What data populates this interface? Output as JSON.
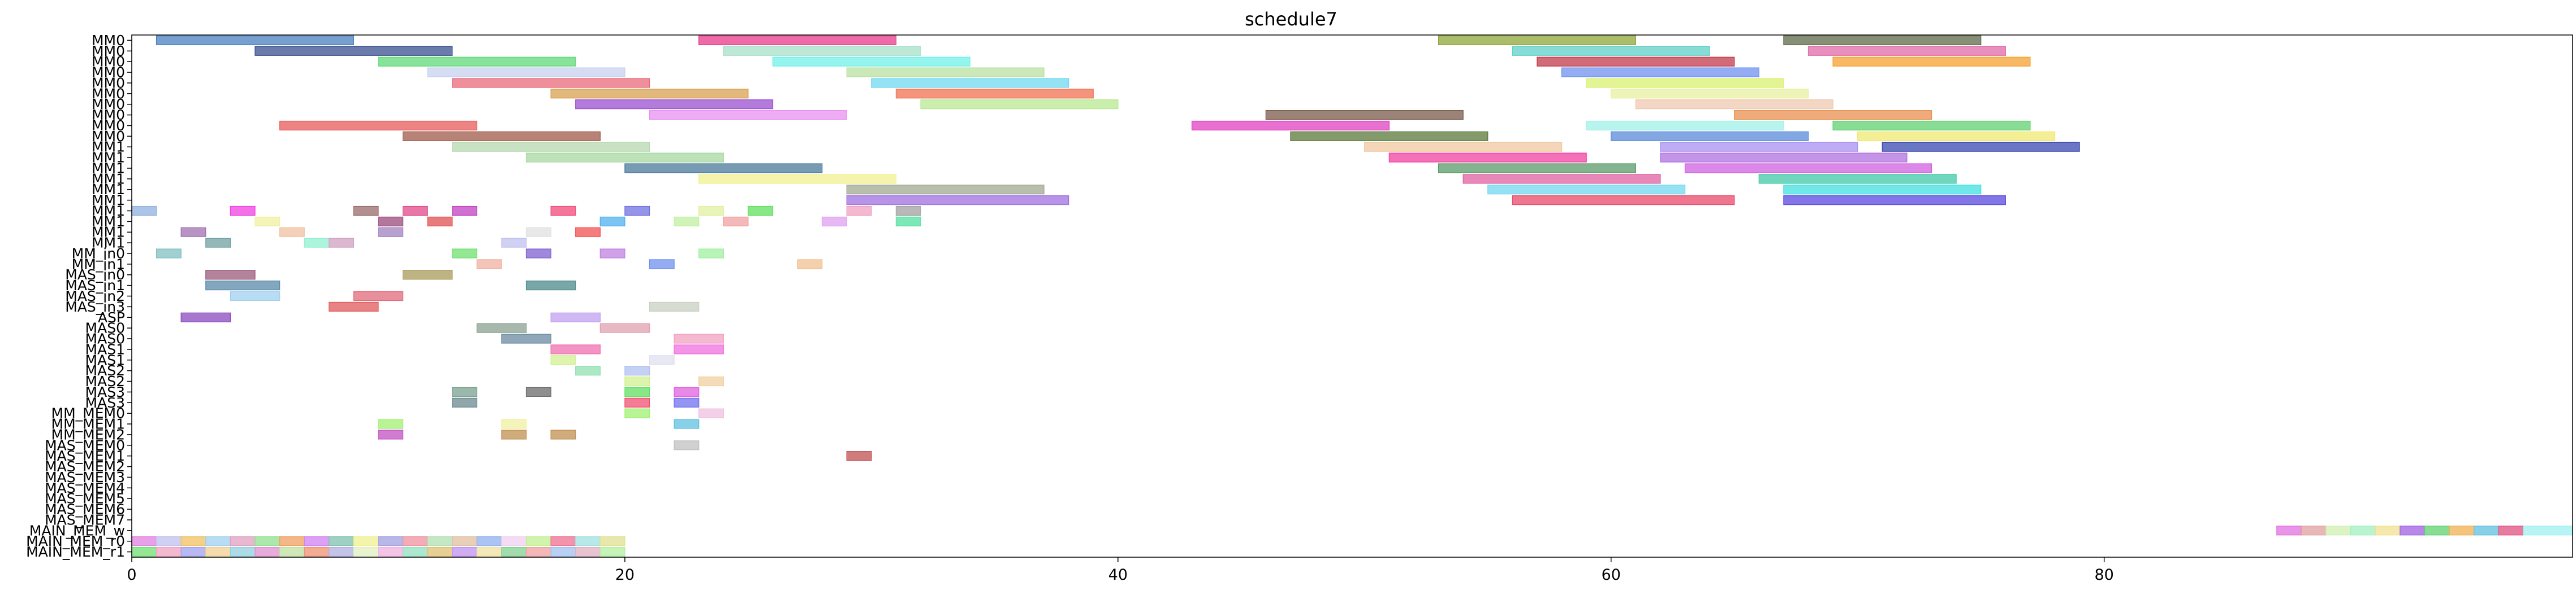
{
  "chart_data": {
    "type": "gantt",
    "title": "schedule7",
    "xlabel": "",
    "ylabel": "",
    "xlim": [
      0,
      99
    ],
    "xticks": [
      0,
      20,
      40,
      60,
      80
    ],
    "rows": [
      "MM0",
      "MM0",
      "MM0",
      "MM0",
      "MM0",
      "MM0",
      "MM0",
      "MM0",
      "MM0",
      "MM0",
      "MM1",
      "MM1",
      "MM1",
      "MM1",
      "MM1",
      "MM1",
      "MM1",
      "MM1",
      "MM1",
      "MM1",
      "MM_in0",
      "MM_in1",
      "MAS_in0",
      "MAS_in1",
      "MAS_in2",
      "MAS_in3",
      "ASP",
      "MAS0",
      "MAS0",
      "MAS1",
      "MAS1",
      "MAS2",
      "MAS2",
      "MAS3",
      "MAS3",
      "MM_MEM0",
      "MM_MEM1",
      "MM_MEM2",
      "MAS_MEM0",
      "MAS_MEM1",
      "MAS_MEM2",
      "MAS_MEM3",
      "MAS_MEM4",
      "MAS_MEM5",
      "MAS_MEM6",
      "MAS_MEM7",
      "MAIN_MEM_w",
      "MAIN_MEM_r0",
      "MAIN_MEM_r1"
    ],
    "tasks": [
      {
        "row": 0,
        "start": 1,
        "end": 9,
        "color": "#4a7fbf"
      },
      {
        "row": 0,
        "start": 23,
        "end": 31,
        "color": "#e83a8a"
      },
      {
        "row": 0,
        "start": 53,
        "end": 61,
        "color": "#8fa63a"
      },
      {
        "row": 0,
        "start": 67,
        "end": 75,
        "color": "#5f6b4a"
      },
      {
        "row": 1,
        "start": 5,
        "end": 13,
        "color": "#3a4f8f"
      },
      {
        "row": 1,
        "start": 24,
        "end": 32,
        "color": "#a8e0c8"
      },
      {
        "row": 1,
        "start": 56,
        "end": 64,
        "color": "#5fd0c8"
      },
      {
        "row": 1,
        "start": 68,
        "end": 76,
        "color": "#e06aa8"
      },
      {
        "row": 2,
        "start": 10,
        "end": 18,
        "color": "#5fd878"
      },
      {
        "row": 2,
        "start": 26,
        "end": 34,
        "color": "#70f0e8"
      },
      {
        "row": 2,
        "start": 57,
        "end": 65,
        "color": "#c03a4a"
      },
      {
        "row": 2,
        "start": 69,
        "end": 77,
        "color": "#f5a030"
      },
      {
        "row": 3,
        "start": 12,
        "end": 20,
        "color": "#c8d0f0"
      },
      {
        "row": 3,
        "start": 29,
        "end": 37,
        "color": "#b8e0a0"
      },
      {
        "row": 3,
        "start": 58,
        "end": 66,
        "color": "#7090f0"
      },
      {
        "row": 4,
        "start": 13,
        "end": 21,
        "color": "#e86a7a"
      },
      {
        "row": 4,
        "start": 30,
        "end": 38,
        "color": "#70d8f0"
      },
      {
        "row": 4,
        "start": 59,
        "end": 67,
        "color": "#d8f070"
      },
      {
        "row": 5,
        "start": 17,
        "end": 25,
        "color": "#d8a050"
      },
      {
        "row": 5,
        "start": 31,
        "end": 39,
        "color": "#f07050"
      },
      {
        "row": 5,
        "start": 60,
        "end": 68,
        "color": "#e8f0a0"
      },
      {
        "row": 6,
        "start": 18,
        "end": 26,
        "color": "#9a50d0"
      },
      {
        "row": 6,
        "start": 32,
        "end": 40,
        "color": "#b8e890"
      },
      {
        "row": 6,
        "start": 61,
        "end": 69,
        "color": "#f0c8b0"
      },
      {
        "row": 7,
        "start": 21,
        "end": 29,
        "color": "#e890f0"
      },
      {
        "row": 7,
        "start": 46,
        "end": 54,
        "color": "#7a5a4a"
      },
      {
        "row": 7,
        "start": 65,
        "end": 73,
        "color": "#e89050"
      },
      {
        "row": 8,
        "start": 6,
        "end": 14,
        "color": "#e85a5a"
      },
      {
        "row": 8,
        "start": 43,
        "end": 51,
        "color": "#e040c0"
      },
      {
        "row": 8,
        "start": 59,
        "end": 67,
        "color": "#a0f0e8"
      },
      {
        "row": 8,
        "start": 69,
        "end": 77,
        "color": "#60d070"
      },
      {
        "row": 9,
        "start": 11,
        "end": 19,
        "color": "#a05a4a"
      },
      {
        "row": 9,
        "start": 47,
        "end": 55,
        "color": "#5a7a3a"
      },
      {
        "row": 9,
        "start": 60,
        "end": 68,
        "color": "#5a8ad8"
      },
      {
        "row": 9,
        "start": 70,
        "end": 78,
        "color": "#f0e870"
      },
      {
        "row": 10,
        "start": 13,
        "end": 21,
        "color": "#b8d8b0"
      },
      {
        "row": 10,
        "start": 50,
        "end": 58,
        "color": "#f0c8a0"
      },
      {
        "row": 10,
        "start": 62,
        "end": 70,
        "color": "#a890f0"
      },
      {
        "row": 10,
        "start": 71,
        "end": 79,
        "color": "#3a4ab0"
      },
      {
        "row": 11,
        "start": 16,
        "end": 24,
        "color": "#a8d8a0"
      },
      {
        "row": 11,
        "start": 51,
        "end": 59,
        "color": "#f040a0"
      },
      {
        "row": 11,
        "start": 62,
        "end": 72,
        "color": "#b070e0"
      },
      {
        "row": 12,
        "start": 20,
        "end": 28,
        "color": "#4a7a9a"
      },
      {
        "row": 12,
        "start": 53,
        "end": 61,
        "color": "#5a9a6a"
      },
      {
        "row": 12,
        "start": 63,
        "end": 73,
        "color": "#d060e0"
      },
      {
        "row": 13,
        "start": 23,
        "end": 31,
        "color": "#f0f090"
      },
      {
        "row": 13,
        "start": 54,
        "end": 62,
        "color": "#e060a0"
      },
      {
        "row": 13,
        "start": 66,
        "end": 74,
        "color": "#40c8a8"
      },
      {
        "row": 14,
        "start": 29,
        "end": 37,
        "color": "#a0a890"
      },
      {
        "row": 14,
        "start": 55,
        "end": 63,
        "color": "#70d8f0"
      },
      {
        "row": 14,
        "start": 67,
        "end": 75,
        "color": "#40e0e0"
      },
      {
        "row": 15,
        "start": 29,
        "end": 38,
        "color": "#a070e0"
      },
      {
        "row": 15,
        "start": 56,
        "end": 65,
        "color": "#e84a6a"
      },
      {
        "row": 15,
        "start": 67,
        "end": 76,
        "color": "#5a4ae0"
      },
      {
        "row": 16,
        "start": 0,
        "end": 1,
        "color": "#90b0e0"
      },
      {
        "row": 16,
        "start": 4,
        "end": 5,
        "color": "#f040e0"
      },
      {
        "row": 16,
        "start": 9,
        "end": 10,
        "color": "#9a6a6a"
      },
      {
        "row": 16,
        "start": 11,
        "end": 12,
        "color": "#e04a8a"
      },
      {
        "row": 16,
        "start": 13,
        "end": 14,
        "color": "#c040c0"
      },
      {
        "row": 16,
        "start": 17,
        "end": 18,
        "color": "#f04a7a"
      },
      {
        "row": 16,
        "start": 20,
        "end": 21,
        "color": "#7070e0"
      },
      {
        "row": 16,
        "start": 23,
        "end": 24,
        "color": "#e0f0a0"
      },
      {
        "row": 16,
        "start": 25,
        "end": 26,
        "color": "#60e060"
      },
      {
        "row": 16,
        "start": 29,
        "end": 30,
        "color": "#f0a0c0"
      },
      {
        "row": 16,
        "start": 31,
        "end": 32,
        "color": "#a0a0a0"
      },
      {
        "row": 17,
        "start": 5,
        "end": 6,
        "color": "#f0f0a0"
      },
      {
        "row": 17,
        "start": 10,
        "end": 11,
        "color": "#9a4a7a"
      },
      {
        "row": 17,
        "start": 12,
        "end": 13,
        "color": "#e05050"
      },
      {
        "row": 17,
        "start": 19,
        "end": 20,
        "color": "#50b0f0"
      },
      {
        "row": 17,
        "start": 22,
        "end": 23,
        "color": "#c0f0a0"
      },
      {
        "row": 17,
        "start": 24,
        "end": 25,
        "color": "#f0a0a0"
      },
      {
        "row": 17,
        "start": 28,
        "end": 29,
        "color": "#e0a0f0"
      },
      {
        "row": 17,
        "start": 31,
        "end": 32,
        "color": "#50e0a0"
      },
      {
        "row": 18,
        "start": 2,
        "end": 3,
        "color": "#a070b0"
      },
      {
        "row": 18,
        "start": 6,
        "end": 7,
        "color": "#f0c0a0"
      },
      {
        "row": 18,
        "start": 10,
        "end": 11,
        "color": "#a080c0"
      },
      {
        "row": 18,
        "start": 16,
        "end": 17,
        "color": "#e0e0e0"
      },
      {
        "row": 18,
        "start": 18,
        "end": 19,
        "color": "#f05050"
      },
      {
        "row": 19,
        "start": 3,
        "end": 4,
        "color": "#70a0a0"
      },
      {
        "row": 19,
        "start": 7,
        "end": 8,
        "color": "#90f0d0"
      },
      {
        "row": 19,
        "start": 8,
        "end": 9,
        "color": "#d0a0c0"
      },
      {
        "row": 19,
        "start": 15,
        "end": 16,
        "color": "#c0c0f0"
      },
      {
        "row": 20,
        "start": 1,
        "end": 2,
        "color": "#80c0c0"
      },
      {
        "row": 20,
        "start": 13,
        "end": 14,
        "color": "#70e070"
      },
      {
        "row": 20,
        "start": 16,
        "end": 17,
        "color": "#8060d0"
      },
      {
        "row": 20,
        "start": 19,
        "end": 20,
        "color": "#c080e0"
      },
      {
        "row": 20,
        "start": 23,
        "end": 24,
        "color": "#a0f0a0"
      },
      {
        "row": 21,
        "start": 14,
        "end": 15,
        "color": "#f0b0a0"
      },
      {
        "row": 21,
        "start": 21,
        "end": 22,
        "color": "#7090f0"
      },
      {
        "row": 21,
        "start": 27,
        "end": 28,
        "color": "#f0c090"
      },
      {
        "row": 22,
        "start": 3,
        "end": 5,
        "color": "#9a5a7a"
      },
      {
        "row": 22,
        "start": 11,
        "end": 13,
        "color": "#a89a5a"
      },
      {
        "row": 23,
        "start": 3,
        "end": 6,
        "color": "#5a8aaa"
      },
      {
        "row": 23,
        "start": 16,
        "end": 18,
        "color": "#4a8a8a"
      },
      {
        "row": 24,
        "start": 4,
        "end": 6,
        "color": "#a0d0f0"
      },
      {
        "row": 24,
        "start": 9,
        "end": 11,
        "color": "#e06a7a"
      },
      {
        "row": 25,
        "start": 8,
        "end": 10,
        "color": "#e05a5a"
      },
      {
        "row": 25,
        "start": 21,
        "end": 23,
        "color": "#c8d0c0"
      },
      {
        "row": 26,
        "start": 2,
        "end": 4,
        "color": "#8a4ac0"
      },
      {
        "row": 26,
        "start": 17,
        "end": 19,
        "color": "#c0a0f0"
      },
      {
        "row": 27,
        "start": 14,
        "end": 16,
        "color": "#8aa090"
      },
      {
        "row": 27,
        "start": 19,
        "end": 21,
        "color": "#e0a0b0"
      },
      {
        "row": 28,
        "start": 15,
        "end": 17,
        "color": "#6a8aa0"
      },
      {
        "row": 28,
        "start": 22,
        "end": 24,
        "color": "#f0a0c0"
      },
      {
        "row": 29,
        "start": 17,
        "end": 19,
        "color": "#f070b0"
      },
      {
        "row": 29,
        "start": 22,
        "end": 24,
        "color": "#f070e0"
      },
      {
        "row": 30,
        "start": 17,
        "end": 18,
        "color": "#d0f090"
      },
      {
        "row": 30,
        "start": 21,
        "end": 22,
        "color": "#e0e0f0"
      },
      {
        "row": 31,
        "start": 18,
        "end": 19,
        "color": "#90e0b0"
      },
      {
        "row": 31,
        "start": 20,
        "end": 21,
        "color": "#b0c0f0"
      },
      {
        "row": 32,
        "start": 20,
        "end": 21,
        "color": "#d0f090"
      },
      {
        "row": 32,
        "start": 23,
        "end": 24,
        "color": "#f0d0a0"
      },
      {
        "row": 33,
        "start": 13,
        "end": 14,
        "color": "#7aa090"
      },
      {
        "row": 33,
        "start": 16,
        "end": 17,
        "color": "#6a6a6a"
      },
      {
        "row": 33,
        "start": 20,
        "end": 21,
        "color": "#60e060"
      },
      {
        "row": 33,
        "start": 22,
        "end": 23,
        "color": "#e060e0"
      },
      {
        "row": 34,
        "start": 13,
        "end": 14,
        "color": "#6a8a90"
      },
      {
        "row": 34,
        "start": 20,
        "end": 21,
        "color": "#f05070"
      },
      {
        "row": 34,
        "start": 22,
        "end": 23,
        "color": "#7070f0"
      },
      {
        "row": 35,
        "start": 20,
        "end": 21,
        "color": "#a0f070"
      },
      {
        "row": 35,
        "start": 23,
        "end": 24,
        "color": "#f0c0e0"
      },
      {
        "row": 36,
        "start": 10,
        "end": 11,
        "color": "#a0f070"
      },
      {
        "row": 36,
        "start": 15,
        "end": 16,
        "color": "#f0f0a0"
      },
      {
        "row": 36,
        "start": 22,
        "end": 23,
        "color": "#60c0e0"
      },
      {
        "row": 37,
        "start": 10,
        "end": 11,
        "color": "#c050c0"
      },
      {
        "row": 37,
        "start": 15,
        "end": 16,
        "color": "#c09050"
      },
      {
        "row": 37,
        "start": 17,
        "end": 18,
        "color": "#c09050"
      },
      {
        "row": 38,
        "start": 22,
        "end": 23,
        "color": "#c0c0c0"
      },
      {
        "row": 39,
        "start": 29,
        "end": 30,
        "color": "#c05050"
      },
      {
        "row": 46,
        "start": 87,
        "end": 88,
        "color": "#e070e0"
      },
      {
        "row": 46,
        "start": 88,
        "end": 89,
        "color": "#e0a0a0"
      },
      {
        "row": 46,
        "start": 89,
        "end": 90,
        "color": "#d0f0b0"
      },
      {
        "row": 46,
        "start": 90,
        "end": 91,
        "color": "#a0f0c0"
      },
      {
        "row": 46,
        "start": 91,
        "end": 92,
        "color": "#f0e090"
      },
      {
        "row": 46,
        "start": 92,
        "end": 93,
        "color": "#a060e0"
      },
      {
        "row": 46,
        "start": 93,
        "end": 94,
        "color": "#60d070"
      },
      {
        "row": 46,
        "start": 94,
        "end": 95,
        "color": "#f0b050"
      },
      {
        "row": 46,
        "start": 95,
        "end": 96,
        "color": "#60c0e0"
      },
      {
        "row": 46,
        "start": 96,
        "end": 97,
        "color": "#e05080"
      },
      {
        "row": 46,
        "start": 97,
        "end": 99,
        "color": "#a0f0f0"
      },
      {
        "row": 47,
        "start": 0,
        "end": 1,
        "color": "#e080e0"
      },
      {
        "row": 47,
        "start": 1,
        "end": 2,
        "color": "#c0c0f0"
      },
      {
        "row": 47,
        "start": 2,
        "end": 3,
        "color": "#f0c060"
      },
      {
        "row": 47,
        "start": 3,
        "end": 4,
        "color": "#a0d0f0"
      },
      {
        "row": 47,
        "start": 4,
        "end": 5,
        "color": "#e0a0c0"
      },
      {
        "row": 47,
        "start": 5,
        "end": 6,
        "color": "#90e090"
      },
      {
        "row": 47,
        "start": 6,
        "end": 7,
        "color": "#f0a060"
      },
      {
        "row": 47,
        "start": 7,
        "end": 8,
        "color": "#d080f0"
      },
      {
        "row": 47,
        "start": 8,
        "end": 9,
        "color": "#80c0b0"
      },
      {
        "row": 47,
        "start": 9,
        "end": 10,
        "color": "#f0f090"
      },
      {
        "row": 47,
        "start": 10,
        "end": 11,
        "color": "#a0a0e0"
      },
      {
        "row": 47,
        "start": 11,
        "end": 12,
        "color": "#f090a0"
      },
      {
        "row": 47,
        "start": 12,
        "end": 13,
        "color": "#b0e0b0"
      },
      {
        "row": 47,
        "start": 13,
        "end": 14,
        "color": "#e0c0a0"
      },
      {
        "row": 47,
        "start": 14,
        "end": 15,
        "color": "#90b0f0"
      },
      {
        "row": 47,
        "start": 15,
        "end": 16,
        "color": "#f0d0f0"
      },
      {
        "row": 47,
        "start": 16,
        "end": 17,
        "color": "#c0f090"
      },
      {
        "row": 47,
        "start": 17,
        "end": 18,
        "color": "#f07090"
      },
      {
        "row": 47,
        "start": 18,
        "end": 19,
        "color": "#a0e0e0"
      },
      {
        "row": 47,
        "start": 19,
        "end": 20,
        "color": "#e0e090"
      },
      {
        "row": 48,
        "start": 0,
        "end": 1,
        "color": "#70e070"
      },
      {
        "row": 48,
        "start": 1,
        "end": 2,
        "color": "#f0a0c0"
      },
      {
        "row": 48,
        "start": 2,
        "end": 3,
        "color": "#a0a0f0"
      },
      {
        "row": 48,
        "start": 3,
        "end": 4,
        "color": "#f0d090"
      },
      {
        "row": 48,
        "start": 4,
        "end": 5,
        "color": "#90d0e0"
      },
      {
        "row": 48,
        "start": 5,
        "end": 6,
        "color": "#e090d0"
      },
      {
        "row": 48,
        "start": 6,
        "end": 7,
        "color": "#c0e0a0"
      },
      {
        "row": 48,
        "start": 7,
        "end": 8,
        "color": "#f09070"
      },
      {
        "row": 48,
        "start": 8,
        "end": 9,
        "color": "#b0b0e0"
      },
      {
        "row": 48,
        "start": 9,
        "end": 10,
        "color": "#e0f0c0"
      },
      {
        "row": 48,
        "start": 10,
        "end": 11,
        "color": "#f0b0e0"
      },
      {
        "row": 48,
        "start": 11,
        "end": 12,
        "color": "#90e0c0"
      },
      {
        "row": 48,
        "start": 12,
        "end": 13,
        "color": "#e0c070"
      },
      {
        "row": 48,
        "start": 13,
        "end": 14,
        "color": "#c090f0"
      },
      {
        "row": 48,
        "start": 14,
        "end": 15,
        "color": "#f0e0a0"
      },
      {
        "row": 48,
        "start": 15,
        "end": 16,
        "color": "#80d090"
      },
      {
        "row": 48,
        "start": 16,
        "end": 17,
        "color": "#f0a0a0"
      },
      {
        "row": 48,
        "start": 17,
        "end": 18,
        "color": "#a0c0f0"
      },
      {
        "row": 48,
        "start": 18,
        "end": 19,
        "color": "#e0b0c0"
      },
      {
        "row": 48,
        "start": 19,
        "end": 20,
        "color": "#b0f0a0"
      }
    ],
    "grid": false,
    "legend": "none"
  }
}
